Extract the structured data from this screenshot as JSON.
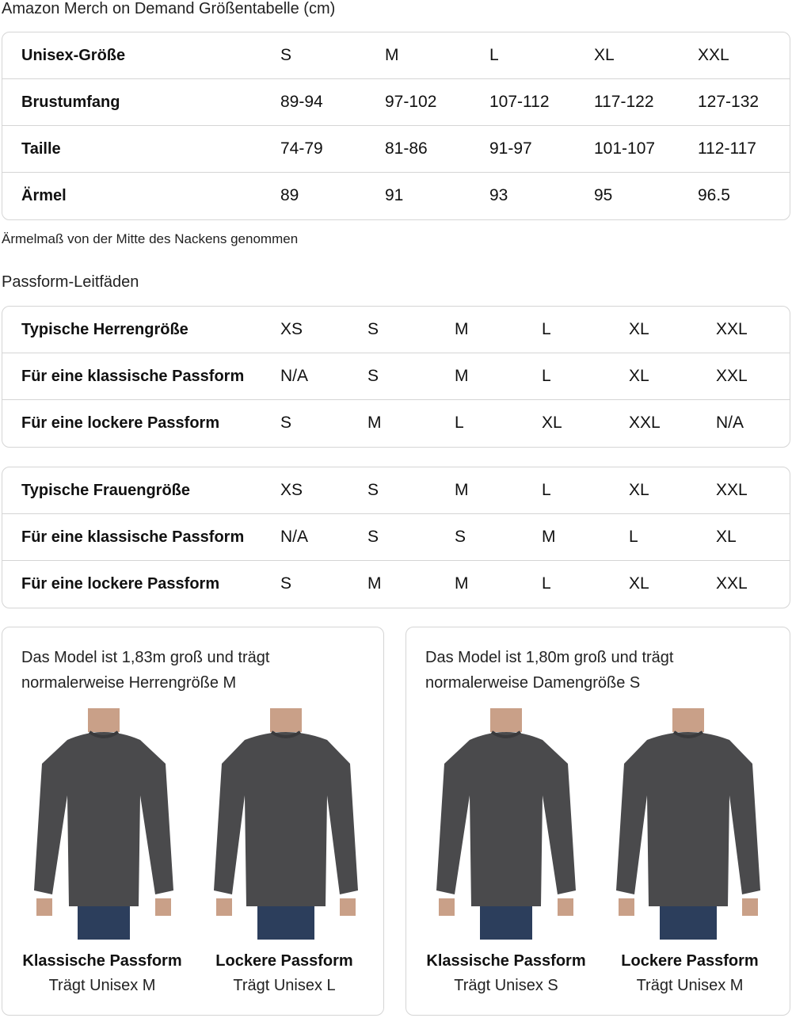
{
  "title": "Amazon Merch on Demand Größentabelle (cm)",
  "size_table": {
    "rows": [
      {
        "label": "Unisex-Größe",
        "values": [
          "S",
          "M",
          "L",
          "XL",
          "XXL"
        ]
      },
      {
        "label": "Brustumfang",
        "values": [
          "89-94",
          "97-102",
          "107-112",
          "117-122",
          "127-132"
        ]
      },
      {
        "label": "Taille",
        "values": [
          "74-79",
          "81-86",
          "91-97",
          "101-107",
          "112-117"
        ]
      },
      {
        "label": "Ärmel",
        "values": [
          "89",
          "91",
          "93",
          "95",
          "96.5"
        ]
      }
    ]
  },
  "sleeve_note": "Ärmelmaß von der Mitte des Nackens genommen",
  "fit_title": "Passform-Leitfäden",
  "men_table": {
    "rows": [
      {
        "label": "Typische Herrengröße",
        "values": [
          "XS",
          "S",
          "M",
          "L",
          "XL",
          "XXL"
        ]
      },
      {
        "label": "Für eine klassische Passform",
        "values": [
          "N/A",
          "S",
          "M",
          "L",
          "XL",
          "XXL"
        ]
      },
      {
        "label": "Für eine lockere Passform",
        "values": [
          "S",
          "M",
          "L",
          "XL",
          "XXL",
          "N/A"
        ]
      }
    ]
  },
  "women_table": {
    "rows": [
      {
        "label": "Typische Frauengröße",
        "values": [
          "XS",
          "S",
          "M",
          "L",
          "XL",
          "XXL"
        ]
      },
      {
        "label": "Für eine klassische Passform",
        "values": [
          "N/A",
          "S",
          "S",
          "M",
          "L",
          "XL"
        ]
      },
      {
        "label": "Für eine lockere Passform",
        "values": [
          "S",
          "M",
          "M",
          "L",
          "XL",
          "XXL"
        ]
      }
    ]
  },
  "cards": [
    {
      "text1": "Das Model ist 1,83m groß und trägt",
      "text2": "normalerweise Herrengröße M",
      "models": [
        {
          "name": "Klassische Passform",
          "wears": "Trägt Unisex M"
        },
        {
          "name": "Lockere Passform",
          "wears": "Trägt Unisex L"
        }
      ]
    },
    {
      "text1": "Das Model ist 1,80m groß und trägt",
      "text2": "normalerweise Damengröße S",
      "models": [
        {
          "name": "Klassische Passform",
          "wears": "Trägt Unisex S"
        },
        {
          "name": "Lockere Passform",
          "wears": "Trägt Unisex M"
        }
      ]
    }
  ],
  "colors": {
    "sweatshirt": "#4a4a4c",
    "jeans": "#2c3e5c",
    "border": "#d5d5d5"
  }
}
